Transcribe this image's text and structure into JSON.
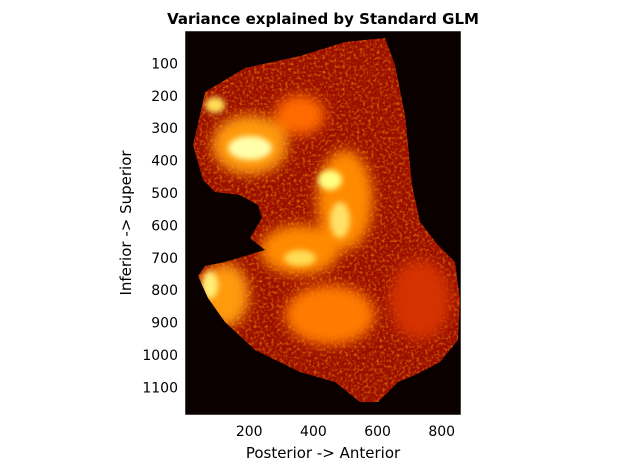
{
  "chart_data": {
    "type": "heatmap",
    "title": "Variance explained by Standard GLM",
    "xlabel": "Posterior -> Anterior",
    "ylabel": "Inferior -> Superior",
    "xlim": [
      0,
      860
    ],
    "ylim": [
      0,
      1185
    ],
    "y_reversed": true,
    "x_ticks": [
      200,
      400,
      600,
      800
    ],
    "y_ticks": [
      100,
      200,
      300,
      400,
      500,
      600,
      700,
      800,
      900,
      1000,
      1100
    ],
    "colormap": "hot",
    "background_color": "#0a0000",
    "grid": false,
    "colorbar": false
  }
}
